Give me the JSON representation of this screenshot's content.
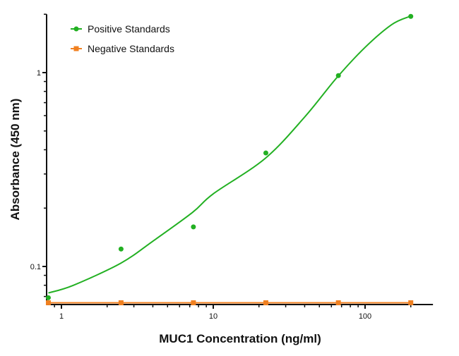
{
  "chart_data": {
    "type": "scatter",
    "title": "",
    "xlabel": "MUC1 Concentration (ng/ml)",
    "ylabel": "Absorbance (450 nm)",
    "xscale": "log",
    "yscale": "log",
    "xlim": [
      0.8,
      280
    ],
    "ylim": [
      0.064,
      2.0
    ],
    "xticks": [
      {
        "value": 1,
        "label": "1"
      },
      {
        "value": 10,
        "label": "10"
      },
      {
        "value": 100,
        "label": "100"
      }
    ],
    "yticks": [
      {
        "value": 0.1,
        "label": "0.1"
      },
      {
        "value": 1,
        "label": "1"
      }
    ],
    "grid": false,
    "legend_position": "top-left",
    "series": [
      {
        "name": "Positive Standards",
        "color": "#22b022",
        "marker": "circle",
        "x": [
          0.82,
          2.47,
          7.4,
          22.2,
          66.7,
          200
        ],
        "y": [
          0.069,
          0.123,
          0.16,
          0.385,
          0.965,
          1.95
        ],
        "fit_curve": {
          "x": [
            0.82,
            1.2,
            2.46,
            4,
            7.3,
            10,
            21.9,
            40,
            65,
            100,
            150,
            197
          ],
          "y": [
            0.073,
            0.08,
            0.104,
            0.135,
            0.19,
            0.237,
            0.36,
            0.59,
            0.94,
            1.35,
            1.77,
            1.95
          ]
        }
      },
      {
        "name": "Negative Standards",
        "color": "#f08020",
        "marker": "square",
        "x": [
          0.82,
          2.47,
          7.4,
          22.2,
          66.7,
          200
        ],
        "y": [
          0.065,
          0.065,
          0.065,
          0.065,
          0.065,
          0.065
        ]
      }
    ]
  }
}
